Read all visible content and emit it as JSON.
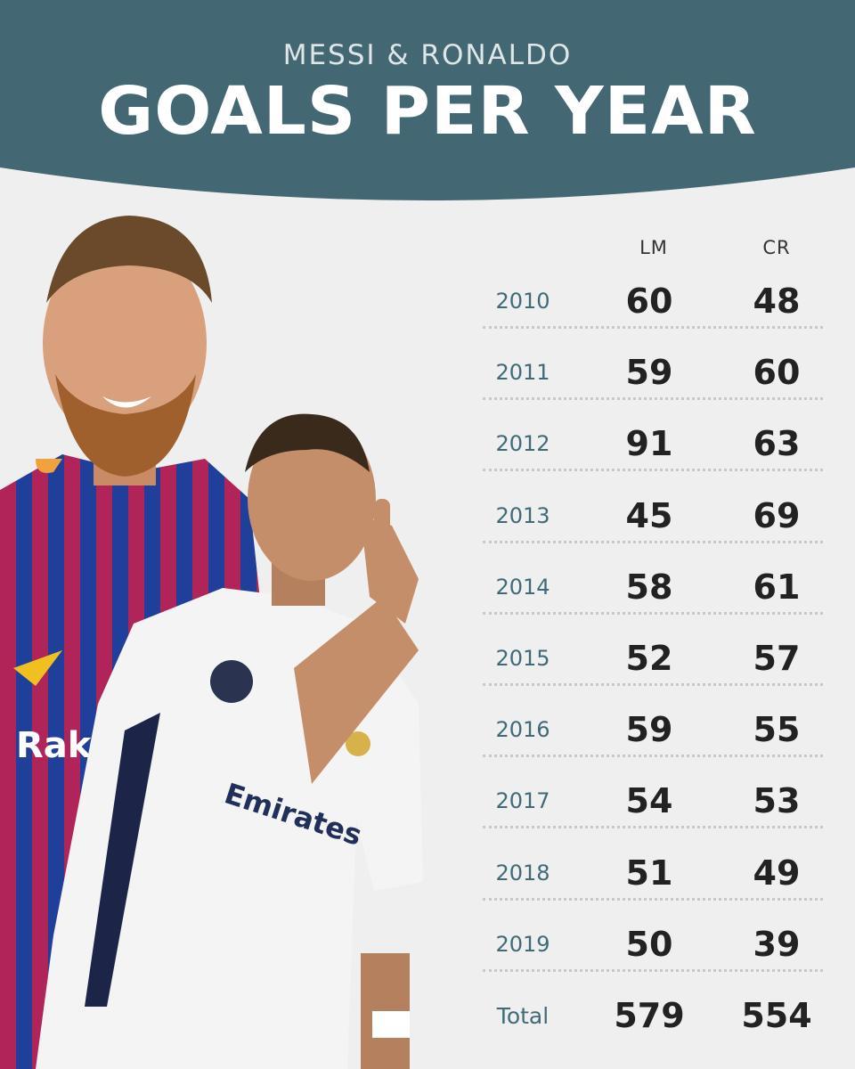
{
  "header": {
    "subtitle": "MESSI & RONALDO",
    "title": "GOALS PER YEAR"
  },
  "colors": {
    "header_bg": "#436873",
    "page_bg": "#efefef",
    "year_text": "#3f6b78",
    "value_text": "#222222"
  },
  "chart_data": {
    "type": "table",
    "title": "GOALS PER YEAR",
    "subtitle": "MESSI & RONALDO",
    "columns": [
      "LM",
      "CR"
    ],
    "rows": [
      {
        "year": "2010",
        "lm": "60",
        "cr": "48"
      },
      {
        "year": "2011",
        "lm": "59",
        "cr": "60"
      },
      {
        "year": "2012",
        "lm": "91",
        "cr": "63"
      },
      {
        "year": "2013",
        "lm": "45",
        "cr": "69"
      },
      {
        "year": "2014",
        "lm": "58",
        "cr": "61"
      },
      {
        "year": "2015",
        "lm": "52",
        "cr": "57"
      },
      {
        "year": "2016",
        "lm": "59",
        "cr": "55"
      },
      {
        "year": "2017",
        "lm": "54",
        "cr": "53"
      },
      {
        "year": "2018",
        "lm": "51",
        "cr": "49"
      },
      {
        "year": "2019",
        "lm": "50",
        "cr": "39"
      },
      {
        "year": "Total",
        "lm": "579",
        "cr": "554"
      }
    ]
  }
}
